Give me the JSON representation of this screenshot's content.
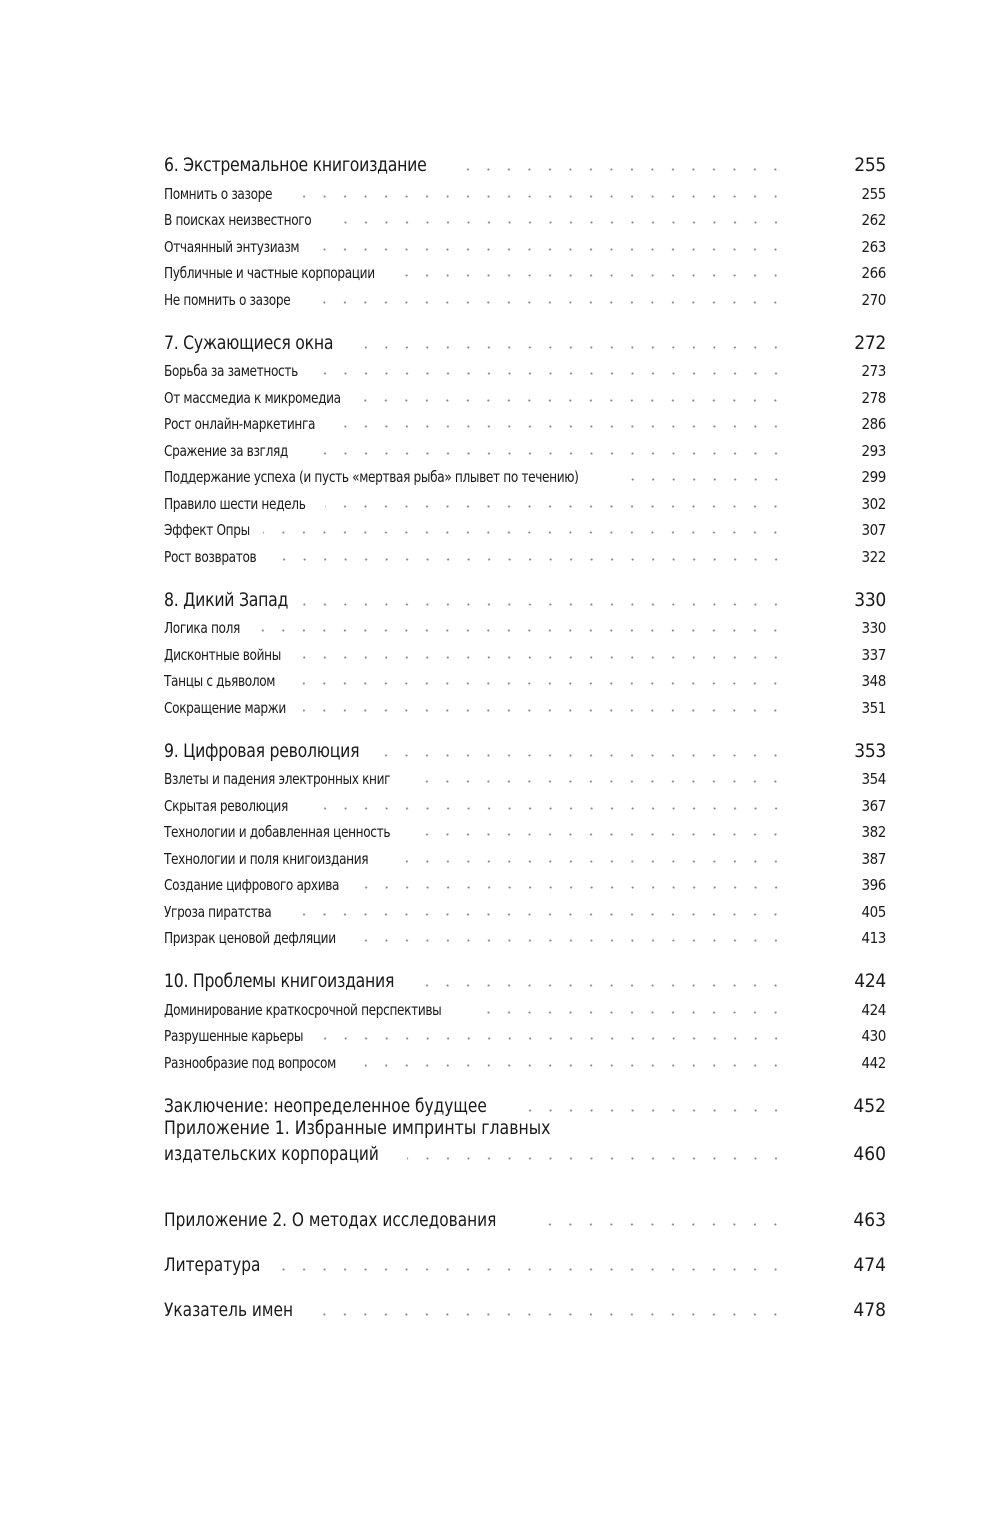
{
  "chapters": [
    {
      "title": "6. Экстремальное книгоиздание",
      "page": "255",
      "sections": [
        {
          "title": "Помнить о зазоре",
          "page": "255"
        },
        {
          "title": "В поисках неизвестного",
          "page": "262"
        },
        {
          "title": "Отчаянный энтузиазм",
          "page": "263"
        },
        {
          "title": "Публичные и частные корпорации",
          "page": "266"
        },
        {
          "title": "Не помнить о зазоре",
          "page": "270"
        }
      ]
    },
    {
      "title": "7. Сужающиеся окна",
      "page": "272",
      "sections": [
        {
          "title": "Борьба за заметность",
          "page": "273"
        },
        {
          "title": "От массмедиа к микромедиа",
          "page": "278"
        },
        {
          "title": "Рост онлайн-маркетинга",
          "page": "286"
        },
        {
          "title": "Сражение за взгляд",
          "page": "293"
        },
        {
          "title": "Поддержание успеха (и пусть «мертвая рыба» плывет по течению)",
          "page": "299"
        },
        {
          "title": "Правило шести недель",
          "page": "302"
        },
        {
          "title": "Эффект Опры",
          "page": "307"
        },
        {
          "title": "Рост возвратов",
          "page": "322"
        }
      ]
    },
    {
      "title": "8. Дикий Запад",
      "page": "330",
      "sections": [
        {
          "title": "Логика поля",
          "page": "330"
        },
        {
          "title": "Дисконтные войны",
          "page": "337"
        },
        {
          "title": "Танцы с дьяволом",
          "page": "348"
        },
        {
          "title": "Сокращение маржи",
          "page": "351"
        }
      ]
    },
    {
      "title": "9. Цифровая революция",
      "page": "353",
      "sections": [
        {
          "title": "Взлеты и падения электронных книг",
          "page": "354"
        },
        {
          "title": "Скрытая революция",
          "page": "367"
        },
        {
          "title": "Технологии и добавленная ценность",
          "page": "382"
        },
        {
          "title": "Технологии и поля книгоиздания",
          "page": "387"
        },
        {
          "title": "Создание цифрового архива",
          "page": "396"
        },
        {
          "title": "Угроза пиратства",
          "page": "405"
        },
        {
          "title": "Призрак ценовой дефляции",
          "page": "413"
        }
      ]
    },
    {
      "title": "10. Проблемы книгоиздания",
      "page": "424",
      "sections": [
        {
          "title": "Доминирование краткосрочной перспективы",
          "page": "424"
        },
        {
          "title": "Разрушенные карьеры",
          "page": "430"
        },
        {
          "title": "Разнообразие под вопросом",
          "page": "442"
        }
      ]
    }
  ],
  "back_matter": [
    {
      "title": "Заключение: неопределенное будущее",
      "page": "452"
    },
    {
      "title_line1": "Приложение 1. Избранные импринты главных",
      "title_line2": "издательских корпораций",
      "page": "460"
    },
    {
      "title": "Приложение 2. О методах исследования",
      "page": "463"
    },
    {
      "title": "Литература",
      "page": "474"
    },
    {
      "title": "Указатель имен",
      "page": "478"
    }
  ]
}
